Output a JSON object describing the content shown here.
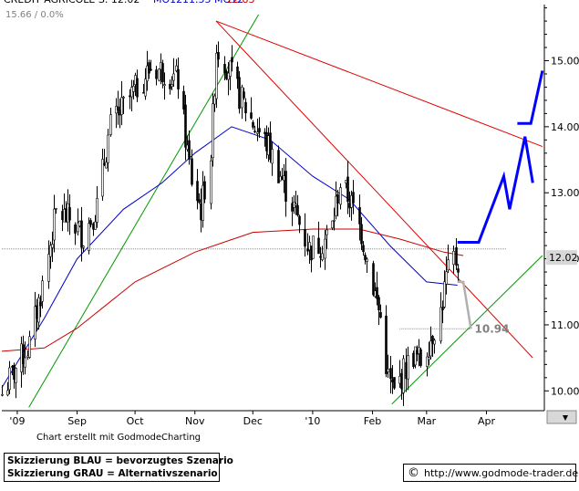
{
  "header": {
    "title_text": "CREDIT AGRICOLE S. 12.02",
    "ma_label_1": "MO12",
    "ma_label_2": "11.55 MO12",
    "ma_label_3": "12.83",
    "sub_text": "15.66 / 0.0%"
  },
  "footer": {
    "credit": "Chart erstellt mit GodmodeCharting",
    "legend_blue": "Skizzierung BLAU = bevorzugtes Szenario",
    "legend_grey": "Skizzierung GRAU = Alternativszenario",
    "copyright_symbol": "©",
    "url": "http://www.godmode-trader.de"
  },
  "colors": {
    "price": "#000000",
    "ma_blue": "#0000cc",
    "ma_red": "#cc0000",
    "trend_red": "#e00000",
    "trend_green": "#009900",
    "scenario_blue": "#0000ff",
    "scenario_grey": "#b0b0b0",
    "last_price_box": "#d8d8d8",
    "grid": "#909090"
  },
  "chart_data": {
    "type": "candlestick",
    "title": "CREDIT AGRICOLE S.",
    "last_price": 12.02,
    "last_price_label": "12.02",
    "support_level": 10.94,
    "support_label": "10.94",
    "ylim": [
      9.7,
      15.85
    ],
    "y_ticks": [
      10,
      11,
      12,
      13,
      14,
      15
    ],
    "y_tick_labels": [
      "10.00",
      "11.00",
      "12.00",
      "13.00",
      "14.00",
      "15.00"
    ],
    "x_ticks": [
      "'09",
      "Sep",
      "Oct",
      "Nov",
      "Dec",
      "'10",
      "Feb",
      "Mar",
      "Apr"
    ],
    "x_tick_dates": [
      "2009-08-01",
      "2009-09-01",
      "2009-10-01",
      "2009-11-01",
      "2009-12-01",
      "2010-01-01",
      "2010-02-01",
      "2010-03-01",
      "2010-04-01"
    ],
    "grid": true,
    "price_anchors": [
      [
        "2009-07-24",
        9.95
      ],
      [
        "2009-07-31",
        10.35
      ],
      [
        "2009-08-07",
        10.7
      ],
      [
        "2009-08-14",
        11.6
      ],
      [
        "2009-08-21",
        12.7
      ],
      [
        "2009-08-28",
        12.6
      ],
      [
        "2009-09-04",
        12.35
      ],
      [
        "2009-09-11",
        12.8
      ],
      [
        "2009-09-18",
        14.0
      ],
      [
        "2009-09-25",
        14.3
      ],
      [
        "2009-10-02",
        14.6
      ],
      [
        "2009-10-09",
        14.9
      ],
      [
        "2009-10-16",
        14.85
      ],
      [
        "2009-10-23",
        14.7
      ],
      [
        "2009-10-30",
        13.2
      ],
      [
        "2009-11-04",
        12.75
      ],
      [
        "2009-11-09",
        13.6
      ],
      [
        "2009-11-12",
        15.2
      ],
      [
        "2009-11-18",
        14.9
      ],
      [
        "2009-11-25",
        14.4
      ],
      [
        "2009-12-02",
        14.0
      ],
      [
        "2009-12-09",
        13.7
      ],
      [
        "2009-12-16",
        13.2
      ],
      [
        "2009-12-23",
        12.7
      ],
      [
        "2009-12-30",
        12.15
      ],
      [
        "2010-01-06",
        12.25
      ],
      [
        "2010-01-11",
        12.5
      ],
      [
        "2010-01-15",
        13.15
      ],
      [
        "2010-01-20",
        12.9
      ],
      [
        "2010-01-26",
        12.4
      ],
      [
        "2010-02-01",
        11.6
      ],
      [
        "2010-02-05",
        11.1
      ],
      [
        "2010-02-09",
        10.2
      ],
      [
        "2010-02-12",
        9.95
      ],
      [
        "2010-02-17",
        10.3
      ],
      [
        "2010-02-22",
        10.55
      ],
      [
        "2010-02-26",
        10.45
      ],
      [
        "2010-03-03",
        10.8
      ],
      [
        "2010-03-08",
        11.2
      ],
      [
        "2010-03-11",
        11.7
      ],
      [
        "2010-03-15",
        12.0
      ],
      [
        "2010-03-17",
        11.95
      ]
    ],
    "series": [
      {
        "name": "MO12",
        "type": "moving_average",
        "points": [
          [
            "2009-07-24",
            10.05
          ],
          [
            "2009-08-15",
            11.1
          ],
          [
            "2009-09-01",
            12.0
          ],
          [
            "2009-09-25",
            12.75
          ],
          [
            "2009-10-15",
            13.15
          ],
          [
            "2009-11-01",
            13.6
          ],
          [
            "2009-11-20",
            14.0
          ],
          [
            "2009-12-10",
            13.8
          ],
          [
            "2010-01-01",
            13.25
          ],
          [
            "2010-01-20",
            12.9
          ],
          [
            "2010-02-10",
            12.2
          ],
          [
            "2010-03-01",
            11.65
          ],
          [
            "2010-03-17",
            11.6
          ]
        ]
      },
      {
        "name": "MO12",
        "type": "moving_average",
        "points": [
          [
            "2009-07-24",
            10.6
          ],
          [
            "2009-08-15",
            10.65
          ],
          [
            "2009-09-01",
            10.95
          ],
          [
            "2009-10-01",
            11.65
          ],
          [
            "2009-11-01",
            12.1
          ],
          [
            "2009-12-01",
            12.4
          ],
          [
            "2010-01-01",
            12.45
          ],
          [
            "2010-01-25",
            12.45
          ],
          [
            "2010-02-15",
            12.3
          ],
          [
            "2010-03-10",
            12.1
          ],
          [
            "2010-03-20",
            12.05
          ]
        ]
      }
    ],
    "drawings": [
      {
        "kind": "trendline",
        "color": "trend_red",
        "points": [
          [
            "2009-11-12",
            15.6
          ],
          [
            "2010-04-25",
            10.5
          ]
        ]
      },
      {
        "kind": "trendline",
        "color": "trend_red",
        "points": [
          [
            "2009-11-12",
            15.6
          ],
          [
            "2010-04-30",
            13.7
          ]
        ]
      },
      {
        "kind": "trendline",
        "color": "trend_green",
        "points": [
          [
            "2009-08-07",
            9.75
          ],
          [
            "2009-12-04",
            15.7
          ]
        ]
      },
      {
        "kind": "trendline",
        "color": "trend_green",
        "points": [
          [
            "2010-02-11",
            9.8
          ],
          [
            "2010-04-30",
            12.05
          ]
        ]
      },
      {
        "kind": "hline",
        "color": "grid",
        "value": 12.15,
        "style": "dotted"
      },
      {
        "kind": "hline",
        "color": "grid",
        "value": 10.94,
        "from": "2010-02-15",
        "to": "2010-03-24",
        "style": "dotted"
      },
      {
        "kind": "scenario",
        "color": "scenario_blue",
        "points": [
          [
            "2010-03-17",
            12.25
          ],
          [
            "2010-03-28",
            12.25
          ],
          [
            "2010-04-10",
            13.25
          ],
          [
            "2010-04-13",
            12.75
          ],
          [
            "2010-04-21",
            13.85
          ],
          [
            "2010-04-25",
            13.15
          ]
        ]
      },
      {
        "kind": "scenario",
        "color": "scenario_blue",
        "points": [
          [
            "2010-04-17",
            14.05
          ],
          [
            "2010-04-24",
            14.05
          ],
          [
            "2010-04-30",
            14.85
          ]
        ]
      },
      {
        "kind": "scenario",
        "color": "scenario_grey",
        "points": [
          [
            "2010-03-17",
            11.65
          ],
          [
            "2010-03-20",
            11.65
          ],
          [
            "2010-03-24",
            10.94
          ]
        ]
      }
    ]
  }
}
